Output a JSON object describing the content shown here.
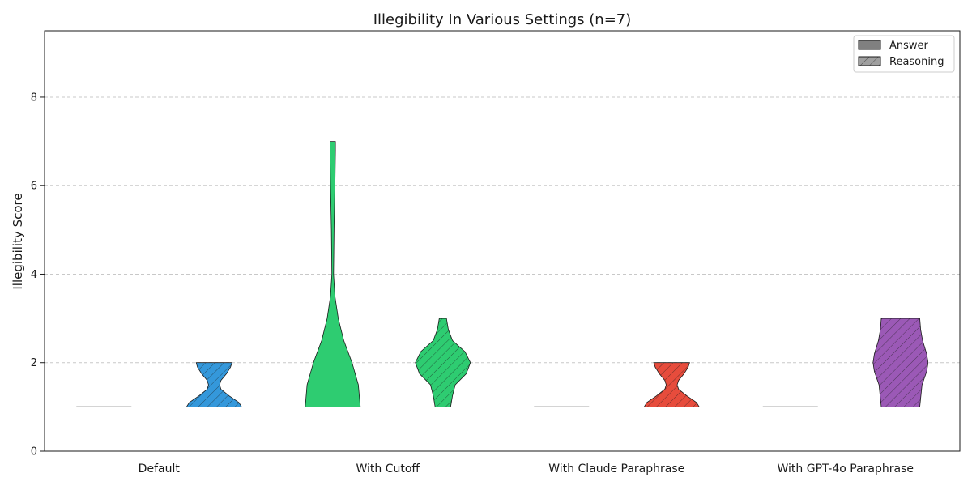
{
  "chart_data": {
    "type": "violin",
    "title": "Illegibility In Various Settings (n=7)",
    "xlabel": "",
    "ylabel": "Illegibility Score",
    "ylim": [
      0,
      9.5
    ],
    "yticks": [
      0,
      2,
      4,
      6,
      8
    ],
    "grid": true,
    "legend_position": "top-right",
    "legend": [
      {
        "label": "Answer",
        "hatch": false
      },
      {
        "label": "Reasoning",
        "hatch": true
      }
    ],
    "categories": [
      "Default",
      "With Cutoff",
      "With Claude Paraphrase",
      "With GPT-4o Paraphrase"
    ],
    "colors": [
      "#3498db",
      "#2ecc71",
      "#e74c3c",
      "#9b59b6"
    ],
    "groups": [
      {
        "category": "Default",
        "answer": {
          "min": 1,
          "max": 1,
          "profile": [
            [
              1,
              0
            ]
          ]
        },
        "reasoning": {
          "min": 1,
          "max": 2,
          "profile": [
            [
              1,
              1.0
            ],
            [
              1.1,
              0.9
            ],
            [
              1.25,
              0.55
            ],
            [
              1.4,
              0.25
            ],
            [
              1.5,
              0.2
            ],
            [
              1.6,
              0.25
            ],
            [
              1.75,
              0.45
            ],
            [
              1.9,
              0.6
            ],
            [
              2,
              0.65
            ]
          ]
        }
      },
      {
        "category": "With Cutoff",
        "answer": {
          "min": 1,
          "max": 7,
          "profile": [
            [
              1,
              1.0
            ],
            [
              1.5,
              0.93
            ],
            [
              2,
              0.7
            ],
            [
              2.5,
              0.4
            ],
            [
              3,
              0.2
            ],
            [
              3.5,
              0.08
            ],
            [
              4,
              0.03
            ],
            [
              5,
              0.05
            ],
            [
              6,
              0.08
            ],
            [
              6.8,
              0.1
            ],
            [
              7,
              0.1
            ]
          ]
        },
        "reasoning": {
          "min": 1,
          "max": 3,
          "profile": [
            [
              1,
              0.28
            ],
            [
              1.25,
              0.35
            ],
            [
              1.5,
              0.45
            ],
            [
              1.75,
              0.85
            ],
            [
              2,
              1.0
            ],
            [
              2.25,
              0.8
            ],
            [
              2.5,
              0.35
            ],
            [
              2.75,
              0.2
            ],
            [
              3,
              0.13
            ]
          ]
        }
      },
      {
        "category": "With Claude Paraphrase",
        "answer": {
          "min": 1,
          "max": 1,
          "profile": [
            [
              1,
              0
            ]
          ]
        },
        "reasoning": {
          "min": 1,
          "max": 2,
          "profile": [
            [
              1,
              1.0
            ],
            [
              1.1,
              0.9
            ],
            [
              1.25,
              0.55
            ],
            [
              1.4,
              0.25
            ],
            [
              1.5,
              0.2
            ],
            [
              1.6,
              0.25
            ],
            [
              1.75,
              0.45
            ],
            [
              1.9,
              0.6
            ],
            [
              2,
              0.65
            ]
          ]
        }
      },
      {
        "category": "With GPT-4o Paraphrase",
        "answer": {
          "min": 1,
          "max": 1,
          "profile": [
            [
              1,
              0
            ]
          ]
        },
        "reasoning": {
          "min": 1,
          "max": 3,
          "profile": [
            [
              1,
              0.7
            ],
            [
              1.5,
              0.78
            ],
            [
              1.8,
              0.95
            ],
            [
              2,
              1.0
            ],
            [
              2.2,
              0.95
            ],
            [
              2.5,
              0.8
            ],
            [
              2.75,
              0.73
            ],
            [
              3,
              0.7
            ]
          ]
        }
      }
    ]
  }
}
